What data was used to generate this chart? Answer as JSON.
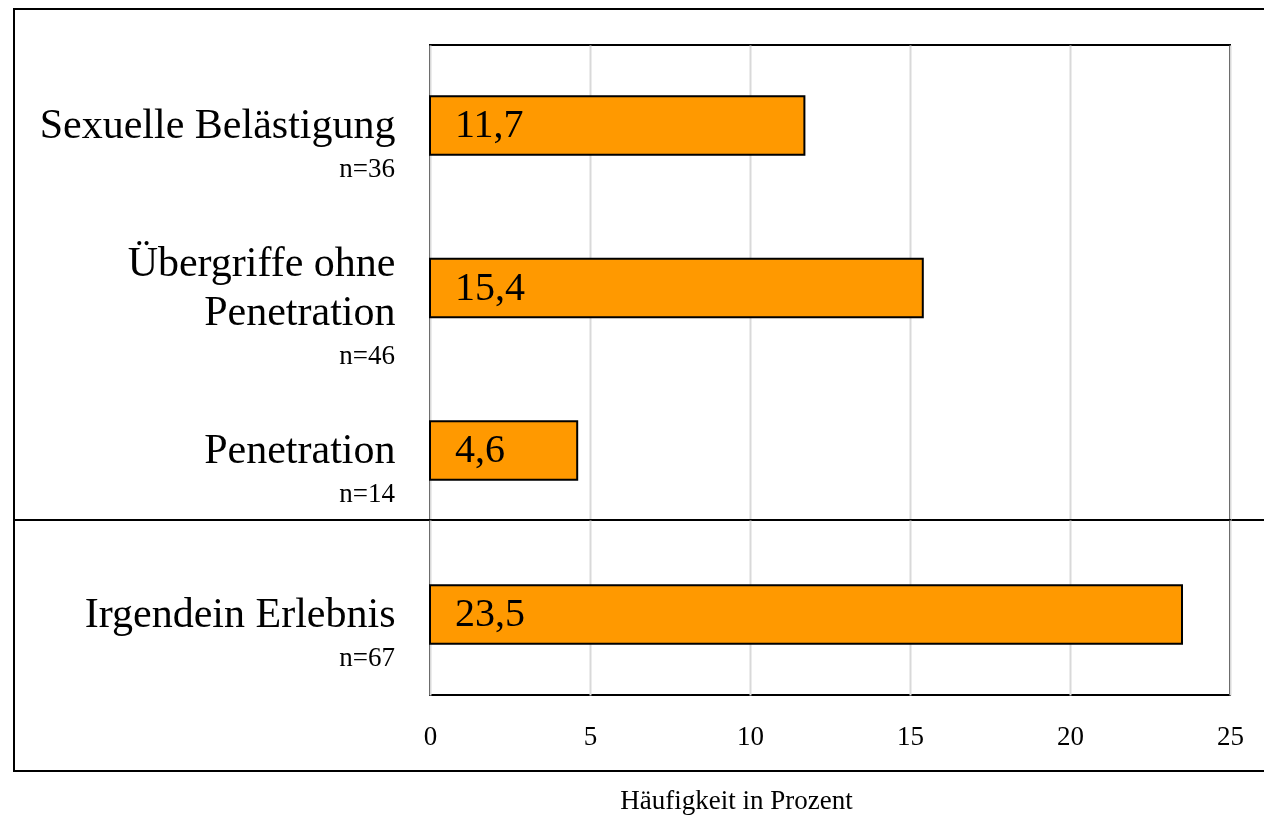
{
  "chart_data": [
    {
      "type": "bar",
      "orientation": "horizontal",
      "categories": [
        "Sexuelle Belästigung",
        "Übergriffe ohne Penetration",
        "Penetration"
      ],
      "values": [
        11.7,
        15.4,
        4.6
      ],
      "value_labels": [
        "11,7",
        "15,4",
        "4,6"
      ],
      "color": "#ff9900",
      "xlim": [
        0,
        25
      ],
      "xticks": [
        0,
        5,
        10,
        15,
        20,
        25
      ],
      "grid": "x",
      "tick_labels": "y",
      "annotations": [
        "n=36",
        "n=46",
        "n=14"
      ]
    },
    {
      "type": "bar",
      "orientation": "horizontal",
      "xlabel": "Häufigkeit in Prozent",
      "categories": [
        "Irgendein Erlebnis"
      ],
      "values": [
        23.5
      ],
      "value_labels": [
        "23,5"
      ],
      "color": "#ff9900",
      "xlim": [
        0,
        25
      ],
      "xticks": [
        0,
        5,
        10,
        15,
        20,
        25
      ],
      "grid": "x",
      "annotations": [
        "n=67"
      ]
    }
  ]
}
